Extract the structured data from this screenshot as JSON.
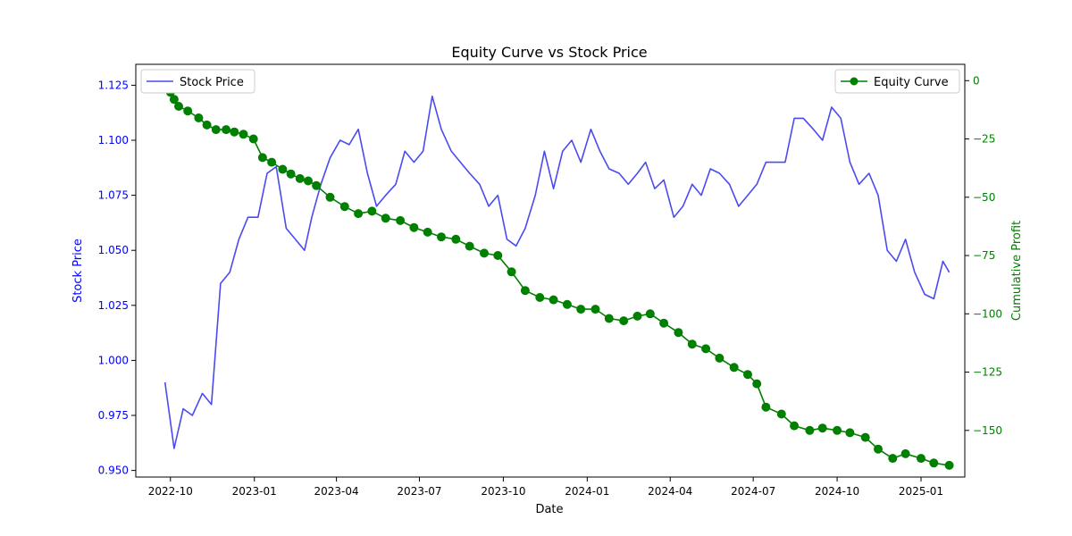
{
  "chart_data": {
    "type": "line",
    "title": "Equity Curve vs Stock Price",
    "xlabel": "Date",
    "ylabel_left": "Stock Price",
    "ylabel_right": "Cumulative Profit",
    "x_range": [
      "2022-08-24",
      "2025-02-18"
    ],
    "x_ticks": [
      "2022-10",
      "2023-01",
      "2023-04",
      "2023-07",
      "2023-10",
      "2024-01",
      "2024-04",
      "2024-07",
      "2024-10",
      "2025-01"
    ],
    "ylim_left": [
      0.947,
      1.1345
    ],
    "yticks_left": [
      "0.950",
      "0.975",
      "1.000",
      "1.025",
      "1.050",
      "1.075",
      "1.100",
      "1.125"
    ],
    "ylim_right": [
      -170,
      7
    ],
    "yticks_right": [
      "0",
      "−25",
      "−50",
      "−75",
      "−100",
      "−125",
      "−150"
    ],
    "grid": false,
    "colors": {
      "price": "#4a4af2",
      "equity": "#008000",
      "left_axis": "#0000ff",
      "right_axis": "#008000"
    },
    "series": [
      {
        "name": "Stock Price",
        "axis": "left",
        "x": [
          "2022-09-25",
          "2022-10-05",
          "2022-10-15",
          "2022-10-25",
          "2022-11-05",
          "2022-11-15",
          "2022-11-25",
          "2022-12-05",
          "2022-12-15",
          "2022-12-25",
          "2023-01-05",
          "2023-01-15",
          "2023-01-25",
          "2023-02-05",
          "2023-02-15",
          "2023-02-25",
          "2023-03-05",
          "2023-03-15",
          "2023-03-25",
          "2023-04-05",
          "2023-04-15",
          "2023-04-25",
          "2023-05-05",
          "2023-05-15",
          "2023-05-25",
          "2023-06-05",
          "2023-06-15",
          "2023-06-25",
          "2023-07-05",
          "2023-07-15",
          "2023-07-25",
          "2023-08-05",
          "2023-08-15",
          "2023-08-25",
          "2023-09-05",
          "2023-09-15",
          "2023-09-25",
          "2023-10-05",
          "2023-10-15",
          "2023-10-25",
          "2023-11-05",
          "2023-11-15",
          "2023-11-25",
          "2023-12-05",
          "2023-12-15",
          "2023-12-25",
          "2024-01-05",
          "2024-01-15",
          "2024-01-25",
          "2024-02-05",
          "2024-02-15",
          "2024-02-25",
          "2024-03-05",
          "2024-03-15",
          "2024-03-25",
          "2024-04-05",
          "2024-04-15",
          "2024-04-25",
          "2024-05-05",
          "2024-05-15",
          "2024-05-25",
          "2024-06-05",
          "2024-06-15",
          "2024-06-25",
          "2024-07-05",
          "2024-07-15",
          "2024-07-25",
          "2024-08-05",
          "2024-08-15",
          "2024-08-25",
          "2024-09-05",
          "2024-09-15",
          "2024-09-25",
          "2024-10-05",
          "2024-10-15",
          "2024-10-25",
          "2024-11-05",
          "2024-11-15",
          "2024-11-25",
          "2024-12-05",
          "2024-12-15",
          "2024-12-25",
          "2025-01-05",
          "2025-01-15",
          "2025-01-25",
          "2025-02-01"
        ],
        "values": [
          0.99,
          0.96,
          0.978,
          0.975,
          0.985,
          0.98,
          1.035,
          1.04,
          1.055,
          1.065,
          1.065,
          1.085,
          1.088,
          1.06,
          1.055,
          1.05,
          1.065,
          1.08,
          1.092,
          1.1,
          1.098,
          1.105,
          1.085,
          1.07,
          1.075,
          1.08,
          1.095,
          1.09,
          1.095,
          1.12,
          1.105,
          1.095,
          1.09,
          1.085,
          1.08,
          1.07,
          1.075,
          1.055,
          1.052,
          1.06,
          1.075,
          1.095,
          1.078,
          1.095,
          1.1,
          1.09,
          1.105,
          1.095,
          1.087,
          1.085,
          1.08,
          1.085,
          1.09,
          1.078,
          1.082,
          1.065,
          1.07,
          1.08,
          1.075,
          1.087,
          1.085,
          1.08,
          1.07,
          1.075,
          1.08,
          1.09,
          1.09,
          1.09,
          1.11,
          1.11,
          1.105,
          1.1,
          1.115,
          1.11,
          1.09,
          1.08,
          1.085,
          1.075,
          1.05,
          1.045,
          1.055,
          1.04,
          1.03,
          1.028,
          1.045,
          1.04
        ]
      },
      {
        "name": "Equity Curve",
        "axis": "right",
        "x": [
          "2022-09-25",
          "2022-10-01",
          "2022-10-05",
          "2022-10-10",
          "2022-10-20",
          "2022-11-01",
          "2022-11-10",
          "2022-11-20",
          "2022-12-01",
          "2022-12-10",
          "2022-12-20",
          "2022-12-31",
          "2023-01-10",
          "2023-01-20",
          "2023-02-01",
          "2023-02-10",
          "2023-02-20",
          "2023-03-01",
          "2023-03-10",
          "2023-03-25",
          "2023-04-10",
          "2023-04-25",
          "2023-05-10",
          "2023-05-25",
          "2023-06-10",
          "2023-06-25",
          "2023-07-10",
          "2023-07-25",
          "2023-08-10",
          "2023-08-25",
          "2023-09-10",
          "2023-09-25",
          "2023-10-10",
          "2023-10-25",
          "2023-11-10",
          "2023-11-25",
          "2023-12-10",
          "2023-12-25",
          "2024-01-10",
          "2024-01-25",
          "2024-02-10",
          "2024-02-25",
          "2024-03-10",
          "2024-03-25",
          "2024-04-10",
          "2024-04-25",
          "2024-05-10",
          "2024-05-25",
          "2024-06-10",
          "2024-06-25",
          "2024-07-05",
          "2024-07-15",
          "2024-08-01",
          "2024-08-15",
          "2024-09-01",
          "2024-09-15",
          "2024-10-01",
          "2024-10-15",
          "2024-11-01",
          "2024-11-15",
          "2024-12-01",
          "2024-12-15",
          "2025-01-01",
          "2025-01-15",
          "2025-02-01"
        ],
        "values": [
          -1,
          -5,
          -8,
          -11,
          -13,
          -16,
          -19,
          -21,
          -21,
          -22,
          -23,
          -25,
          -33,
          -35,
          -38,
          -40,
          -42,
          -43,
          -45,
          -50,
          -54,
          -57,
          -56,
          -59,
          -60,
          -63,
          -65,
          -67,
          -68,
          -71,
          -74,
          -75,
          -82,
          -90,
          -93,
          -94,
          -96,
          -98,
          -98,
          -102,
          -103,
          -101,
          -100,
          -104,
          -108,
          -113,
          -115,
          -119,
          -123,
          -126,
          -130,
          -140,
          -143,
          -148,
          -150,
          -149,
          -150,
          -151,
          -153,
          -158,
          -162,
          -160,
          -162,
          -164,
          -165
        ]
      }
    ]
  }
}
